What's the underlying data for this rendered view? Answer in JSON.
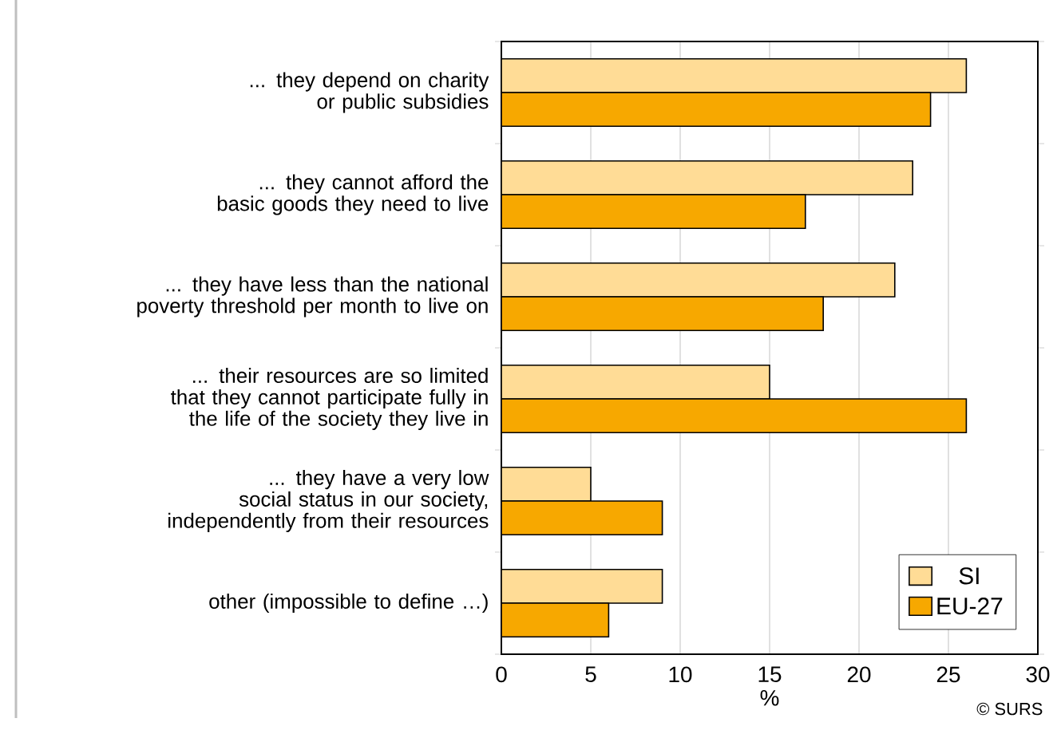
{
  "chart_data": {
    "type": "bar",
    "orientation": "horizontal",
    "xlabel": "%",
    "categories": [
      "... they depend on charity or public subsidies",
      "... they cannot afford the basic goods they need to live",
      "... they have less than the national poverty threshold per month to live on",
      "... their resources are so limited that they cannot participate fully in the life of the society they live in",
      "... they have a very low social status in our society, independently from their resources",
      "other (impossible to define …)"
    ],
    "series": [
      {
        "name": "SI",
        "color": "#ffdc96",
        "values": [
          26,
          23,
          22,
          15,
          5,
          9
        ]
      },
      {
        "name": "EU-27",
        "color": "#f7a800",
        "values": [
          24,
          17,
          18,
          26,
          9,
          6
        ]
      }
    ],
    "xlim": [
      0,
      30
    ],
    "xticks": [
      0,
      5,
      10,
      15,
      20,
      25,
      30
    ],
    "grid": "x",
    "legend": "bottom right",
    "annotations": [
      "© SURS"
    ]
  }
}
